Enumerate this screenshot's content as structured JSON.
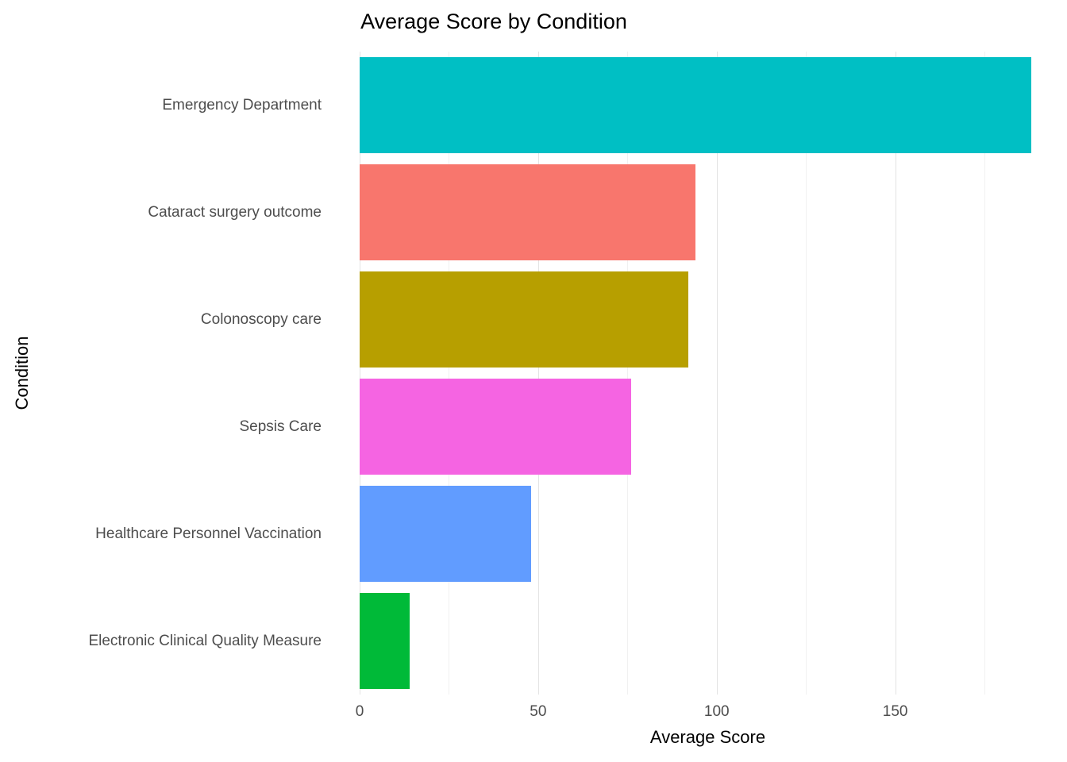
{
  "chart_data": {
    "type": "bar",
    "orientation": "horizontal",
    "title": "Average Score by Condition",
    "xlabel": "Average Score",
    "ylabel": "Condition",
    "categories": [
      "Emergency Department",
      "Cataract surgery outcome",
      "Colonoscopy care",
      "Sepsis Care",
      "Healthcare Personnel Vaccination",
      "Electronic Clinical Quality Measure"
    ],
    "values": [
      188,
      94,
      92,
      76,
      48,
      14
    ],
    "colors": [
      "#00BFC4",
      "#F8766D",
      "#B79F00",
      "#F564E2",
      "#619CFF",
      "#00BA38"
    ],
    "xlim": [
      0,
      195
    ],
    "x_major_ticks": [
      0,
      50,
      100,
      150
    ],
    "x_minor_ticks": [
      25,
      75,
      125,
      175
    ],
    "grid": true,
    "legend": "none",
    "background": "#ffffff",
    "grid_major_color": "#e3e3e3",
    "grid_minor_color": "#f1f1f1",
    "bar_width_fraction": 0.9
  }
}
